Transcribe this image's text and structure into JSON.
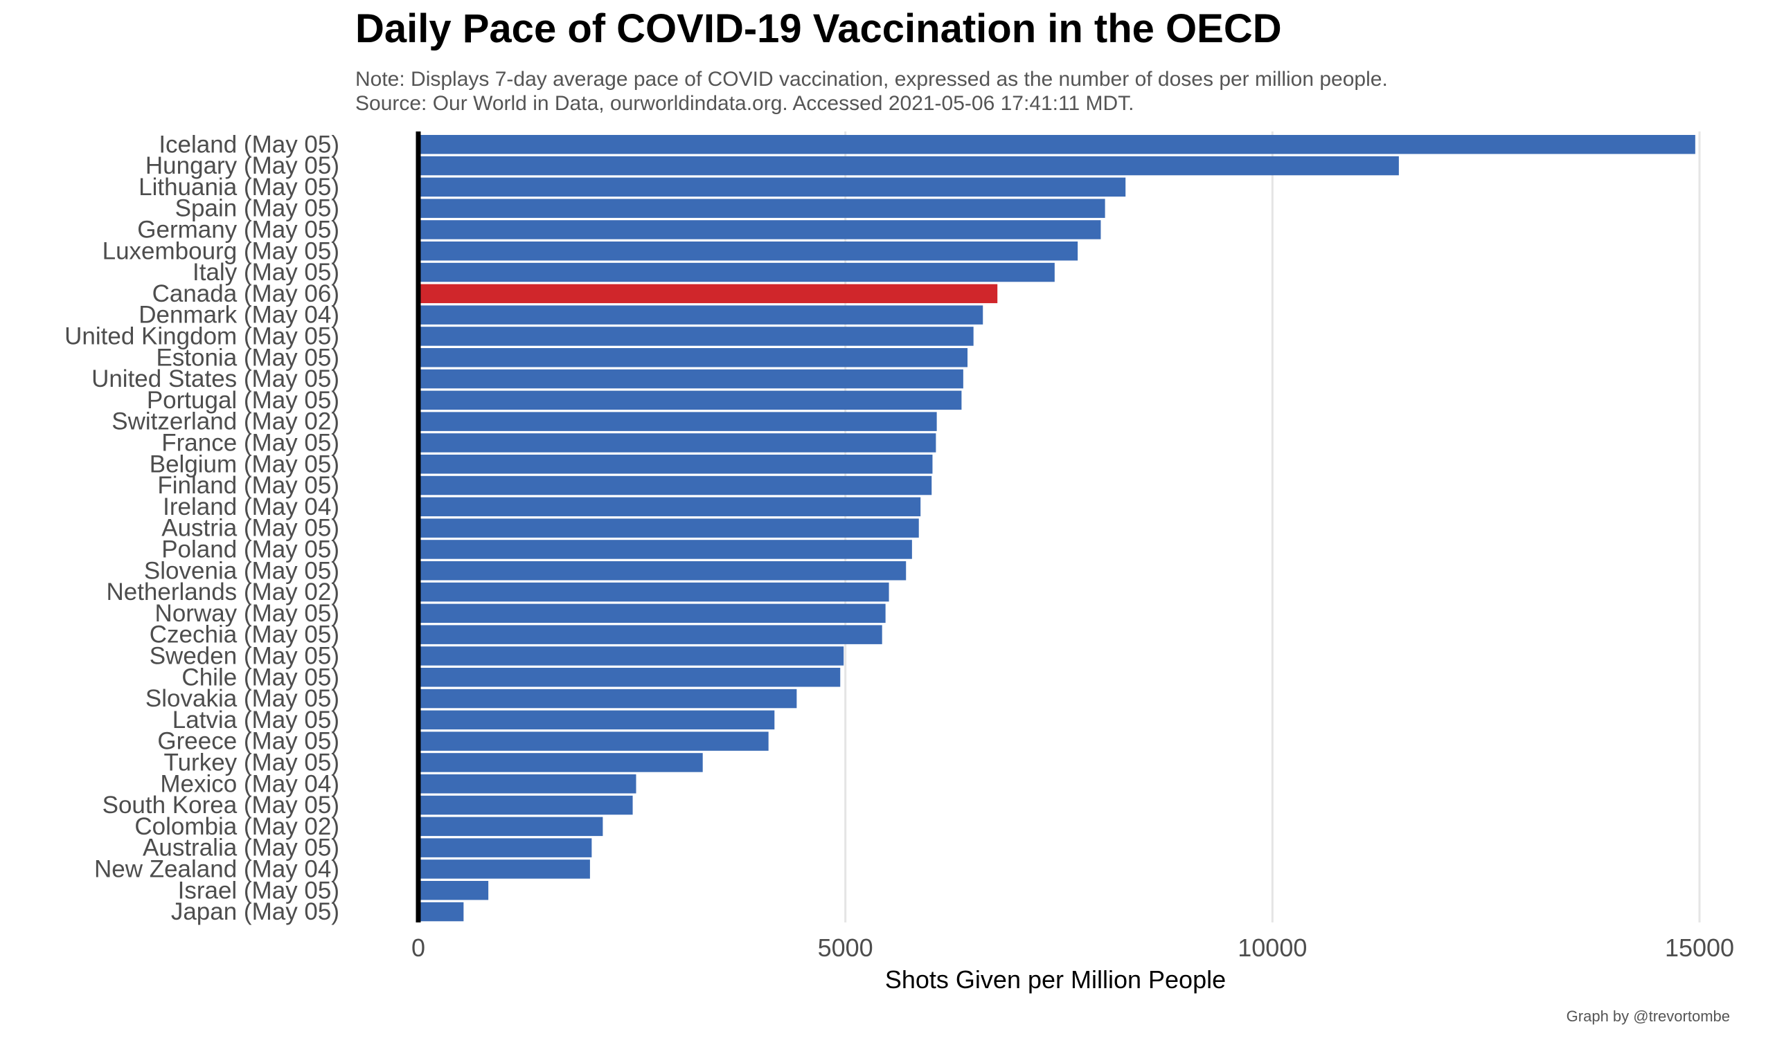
{
  "chart_data": {
    "type": "bar",
    "orientation": "horizontal",
    "title": "Daily Pace of COVID-19 Vaccination in the OECD",
    "subtitle": [
      "Note: Displays 7-day average pace of COVID vaccination, expressed as the number of doses per million people.",
      "Source: Our World in Data, ourworldindata.org. Accessed 2021-05-06 17:41:11  MDT."
    ],
    "xlabel": "Shots Given per Million People",
    "ylabel": "",
    "xlim": [
      0,
      15000
    ],
    "xticks": [
      0,
      5000,
      10000,
      15000
    ],
    "xtick_labels": [
      "0",
      "5000",
      "10000",
      "15000"
    ],
    "grid": "vertical major gridlines",
    "legend": "none",
    "colors": {
      "default_bar": "#3B6BB5",
      "highlight_bar": "#D0262B",
      "gridline": "#E5E5E5",
      "axis_line": "#000000"
    },
    "highlight_category": "Canada (May 06)",
    "categories": [
      "Iceland (May 05)",
      "Hungary (May 05)",
      "Lithuania (May 05)",
      "Spain (May 05)",
      "Germany (May 05)",
      "Luxembourg (May 05)",
      "Italy (May 05)",
      "Canada (May 06)",
      "Denmark (May 04)",
      "United Kingdom (May 05)",
      "Estonia (May 05)",
      "United States (May 05)",
      "Portugal (May 05)",
      "Switzerland (May 02)",
      "France (May 05)",
      "Belgium (May 05)",
      "Finland (May 05)",
      "Ireland (May 04)",
      "Austria (May 05)",
      "Poland (May 05)",
      "Slovenia (May 05)",
      "Netherlands (May 02)",
      "Norway (May 05)",
      "Czechia (May 05)",
      "Sweden (May 05)",
      "Chile (May 05)",
      "Slovakia (May 05)",
      "Latvia (May 05)",
      "Greece (May 05)",
      "Turkey (May 05)",
      "Mexico (May 04)",
      "South Korea (May 05)",
      "Colombia (May 02)",
      "Australia (May 05)",
      "New Zealand (May 04)",
      "Israel (May 05)",
      "Japan (May 05)"
    ],
    "values": [
      14950,
      11480,
      8280,
      8040,
      7990,
      7720,
      7450,
      6780,
      6610,
      6500,
      6430,
      6380,
      6360,
      6070,
      6060,
      6020,
      6010,
      5880,
      5860,
      5780,
      5710,
      5510,
      5470,
      5430,
      4980,
      4940,
      4430,
      4170,
      4100,
      3330,
      2550,
      2510,
      2160,
      2030,
      2010,
      820,
      530
    ]
  },
  "credit": "Graph by @trevortombe"
}
